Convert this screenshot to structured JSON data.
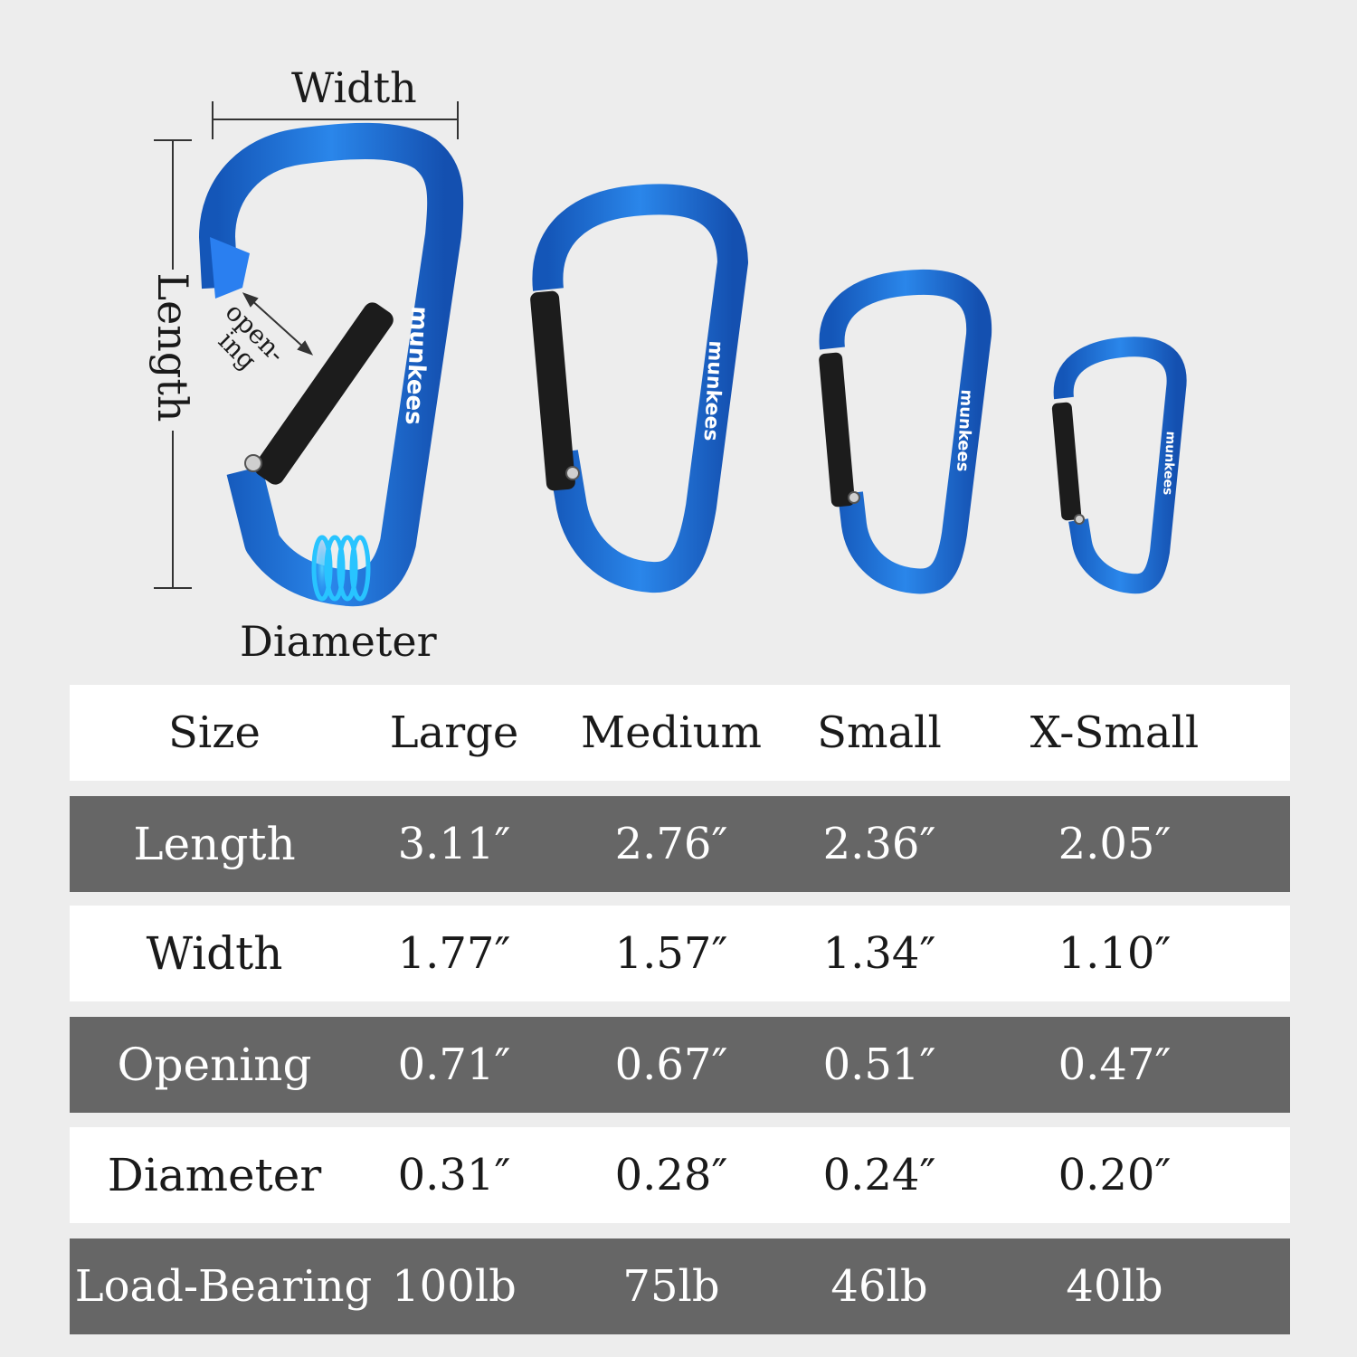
{
  "figure": {
    "labels": {
      "width": "Width",
      "length": "Length",
      "opening_line1": "open-",
      "opening_line2": "ing",
      "diameter": "Diameter"
    },
    "brand": "munkees",
    "colors": {
      "carabiner_blue": "#1f6fd6",
      "gate_black": "#1c1c1c",
      "background": "#ededed"
    }
  },
  "table": {
    "header": [
      "Size",
      "Large",
      "Medium",
      "Small",
      "X-Small"
    ],
    "rows": [
      {
        "label": "Length",
        "values": [
          "3.11″",
          "2.76″",
          "2.36″",
          "2.05″"
        ]
      },
      {
        "label": "Width",
        "values": [
          "1.77″",
          "1.57″",
          "1.34″",
          "1.10″"
        ]
      },
      {
        "label": "Opening",
        "values": [
          "0.71″",
          "0.67″",
          "0.51″",
          "0.47″"
        ]
      },
      {
        "label": "Diameter",
        "values": [
          "0.31″",
          "0.28″",
          "0.24″",
          "0.20″"
        ]
      },
      {
        "label": "Load-Bearing",
        "values": [
          "100lb",
          "75lb",
          "46lb",
          "40lb"
        ]
      }
    ],
    "colors": {
      "light_row": "#ffffff",
      "dark_row": "#666666"
    }
  }
}
